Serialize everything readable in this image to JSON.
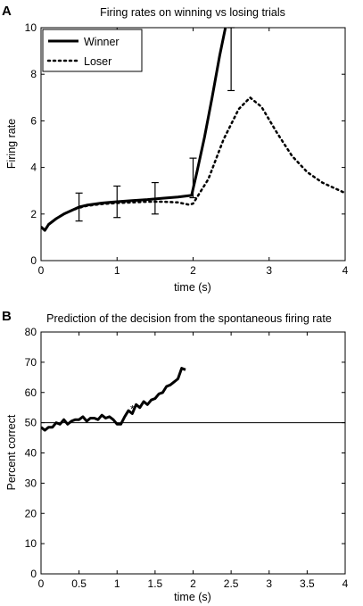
{
  "chart_data": [
    {
      "type": "line",
      "panel_label": "A",
      "title": "Firing rates on winning vs losing trials",
      "xlabel": "time (s)",
      "ylabel": "Firing rate",
      "xlim": [
        0,
        4
      ],
      "ylim": [
        0,
        10
      ],
      "xticks": [
        0,
        1,
        2,
        3,
        4
      ],
      "yticks": [
        0,
        2,
        4,
        6,
        8,
        10
      ],
      "grid": false,
      "legend_placement": "top-left",
      "series": [
        {
          "name": "Winner",
          "style": "solid",
          "x": [
            0,
            0.05,
            0.1,
            0.2,
            0.3,
            0.4,
            0.5,
            0.6,
            0.8,
            1.0,
            1.2,
            1.4,
            1.6,
            1.8,
            1.98,
            2.05,
            2.15,
            2.25,
            2.35,
            2.45,
            2.5
          ],
          "y": [
            1.45,
            1.3,
            1.55,
            1.8,
            2.0,
            2.15,
            2.3,
            2.38,
            2.47,
            2.53,
            2.58,
            2.62,
            2.68,
            2.73,
            2.8,
            3.8,
            5.3,
            7.0,
            8.8,
            10.4,
            11.2
          ]
        },
        {
          "name": "Loser",
          "style": "dotted",
          "x": [
            0,
            0.05,
            0.1,
            0.2,
            0.3,
            0.4,
            0.5,
            0.6,
            0.8,
            1.0,
            1.2,
            1.4,
            1.6,
            1.8,
            1.95,
            2.0,
            2.2,
            2.4,
            2.6,
            2.75,
            2.9,
            3.1,
            3.3,
            3.5,
            3.7,
            3.9,
            4.0
          ],
          "y": [
            1.45,
            1.3,
            1.55,
            1.8,
            2.0,
            2.15,
            2.27,
            2.35,
            2.43,
            2.47,
            2.5,
            2.53,
            2.53,
            2.5,
            2.4,
            2.45,
            3.5,
            5.2,
            6.5,
            7.0,
            6.6,
            5.5,
            4.5,
            3.8,
            3.35,
            3.05,
            2.9
          ]
        }
      ],
      "error_bars": [
        {
          "x": 0.5,
          "low": 1.7,
          "high": 2.9
        },
        {
          "x": 1.0,
          "low": 1.85,
          "high": 3.2
        },
        {
          "x": 1.5,
          "low": 2.0,
          "high": 3.35
        },
        {
          "x": 2.0,
          "low": 2.7,
          "high": 4.4
        },
        {
          "x": 2.5,
          "low": 7.3,
          "high": 10.0
        }
      ]
    },
    {
      "type": "line",
      "panel_label": "B",
      "title": "Prediction of the decision from the spontaneous firing rate",
      "xlabel": "time (s)",
      "ylabel": "Percent correct",
      "xlim": [
        0,
        4
      ],
      "ylim": [
        0,
        80
      ],
      "xticks": [
        0,
        0.5,
        1,
        1.5,
        2,
        2.5,
        3,
        3.5,
        4
      ],
      "yticks": [
        0,
        10,
        20,
        30,
        40,
        50,
        60,
        70,
        80
      ],
      "grid": false,
      "reference_line": 50,
      "annotation": {
        "text": "*",
        "x": 1.2,
        "y": 55
      },
      "series": [
        {
          "name": "",
          "style": "solid",
          "x": [
            0,
            0.05,
            0.1,
            0.15,
            0.2,
            0.25,
            0.3,
            0.35,
            0.4,
            0.45,
            0.5,
            0.55,
            0.6,
            0.65,
            0.7,
            0.75,
            0.8,
            0.85,
            0.9,
            0.95,
            1.0,
            1.05,
            1.1,
            1.15,
            1.2,
            1.25,
            1.3,
            1.35,
            1.4,
            1.45,
            1.5,
            1.55,
            1.6,
            1.65,
            1.7,
            1.75,
            1.8,
            1.85,
            1.9
          ],
          "y": [
            48.5,
            47.5,
            48.5,
            48.5,
            50,
            49.5,
            51,
            49.5,
            50.5,
            51,
            51,
            52,
            50.5,
            51.5,
            51.5,
            51,
            52.5,
            51.5,
            52,
            51,
            49.5,
            49.5,
            52,
            54,
            53,
            56,
            55,
            57,
            56,
            57.5,
            58,
            59.5,
            60,
            62,
            62.5,
            63.5,
            64.5,
            68,
            67.5
          ]
        }
      ]
    }
  ]
}
